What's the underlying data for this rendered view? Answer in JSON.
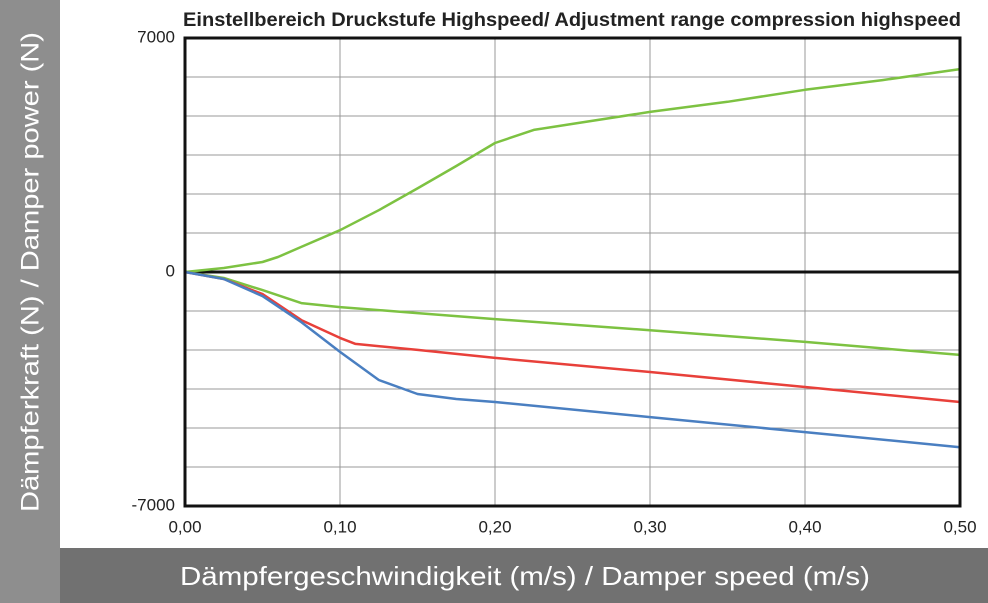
{
  "chart_data": {
    "type": "line",
    "title": "Einstellbereich Druckstufe Highspeed/ Adjustment range compression highspeed",
    "x_label": "Dämpfergeschwindigkeit (m/s) / Damper speed (m/s)",
    "y_label": "Dämpferkraft (N) / Damper power (N)",
    "xlim": [
      0,
      0.5
    ],
    "ylim": [
      -7000,
      7000
    ],
    "xticks": [
      {
        "value": 0,
        "label": "0,00"
      },
      {
        "value": 0.1,
        "label": "0,10"
      },
      {
        "value": 0.2,
        "label": "0,20"
      },
      {
        "value": 0.3,
        "label": "0,30"
      },
      {
        "value": 0.4,
        "label": "0,40"
      },
      {
        "value": 0.5,
        "label": "0,50"
      }
    ],
    "yticks": [
      -7000,
      0,
      7000
    ],
    "ygrid": [
      -5833.33,
      -4666.67,
      -3500,
      -2333.33,
      -1166.67,
      1166.67,
      2333.33,
      3500,
      4666.67,
      5833.33
    ],
    "grid": true,
    "series": [
      {
        "color": "#7dc242",
        "x": [
          0,
          0.025,
          0.05,
          0.06,
          0.075,
          0.1,
          0.125,
          0.15,
          0.175,
          0.2,
          0.225,
          0.25,
          0.3,
          0.35,
          0.4,
          0.45,
          0.5
        ],
        "values": [
          0,
          120,
          300,
          450,
          750,
          1250,
          1850,
          2500,
          3170,
          3860,
          4250,
          4430,
          4790,
          5090,
          5450,
          5740,
          6070
        ]
      },
      {
        "color": "#7dc242",
        "x": [
          0,
          0.025,
          0.05,
          0.075,
          0.1,
          0.15,
          0.2,
          0.3,
          0.4,
          0.5
        ],
        "values": [
          0,
          -180,
          -540,
          -930,
          -1050,
          -1230,
          -1410,
          -1740,
          -2090,
          -2480
        ]
      },
      {
        "color": "#e8403a",
        "x": [
          0,
          0.025,
          0.05,
          0.075,
          0.1,
          0.11,
          0.15,
          0.2,
          0.3,
          0.4,
          0.5
        ],
        "values": [
          0,
          -210,
          -660,
          -1440,
          -1970,
          -2150,
          -2330,
          -2570,
          -2990,
          -3440,
          -3890
        ]
      },
      {
        "color": "#4a7fc1",
        "x": [
          0,
          0.025,
          0.05,
          0.075,
          0.1,
          0.125,
          0.15,
          0.175,
          0.2,
          0.3,
          0.4,
          0.5
        ],
        "values": [
          0,
          -210,
          -720,
          -1500,
          -2390,
          -3230,
          -3650,
          -3800,
          -3890,
          -4340,
          -4790,
          -5240
        ]
      }
    ]
  }
}
